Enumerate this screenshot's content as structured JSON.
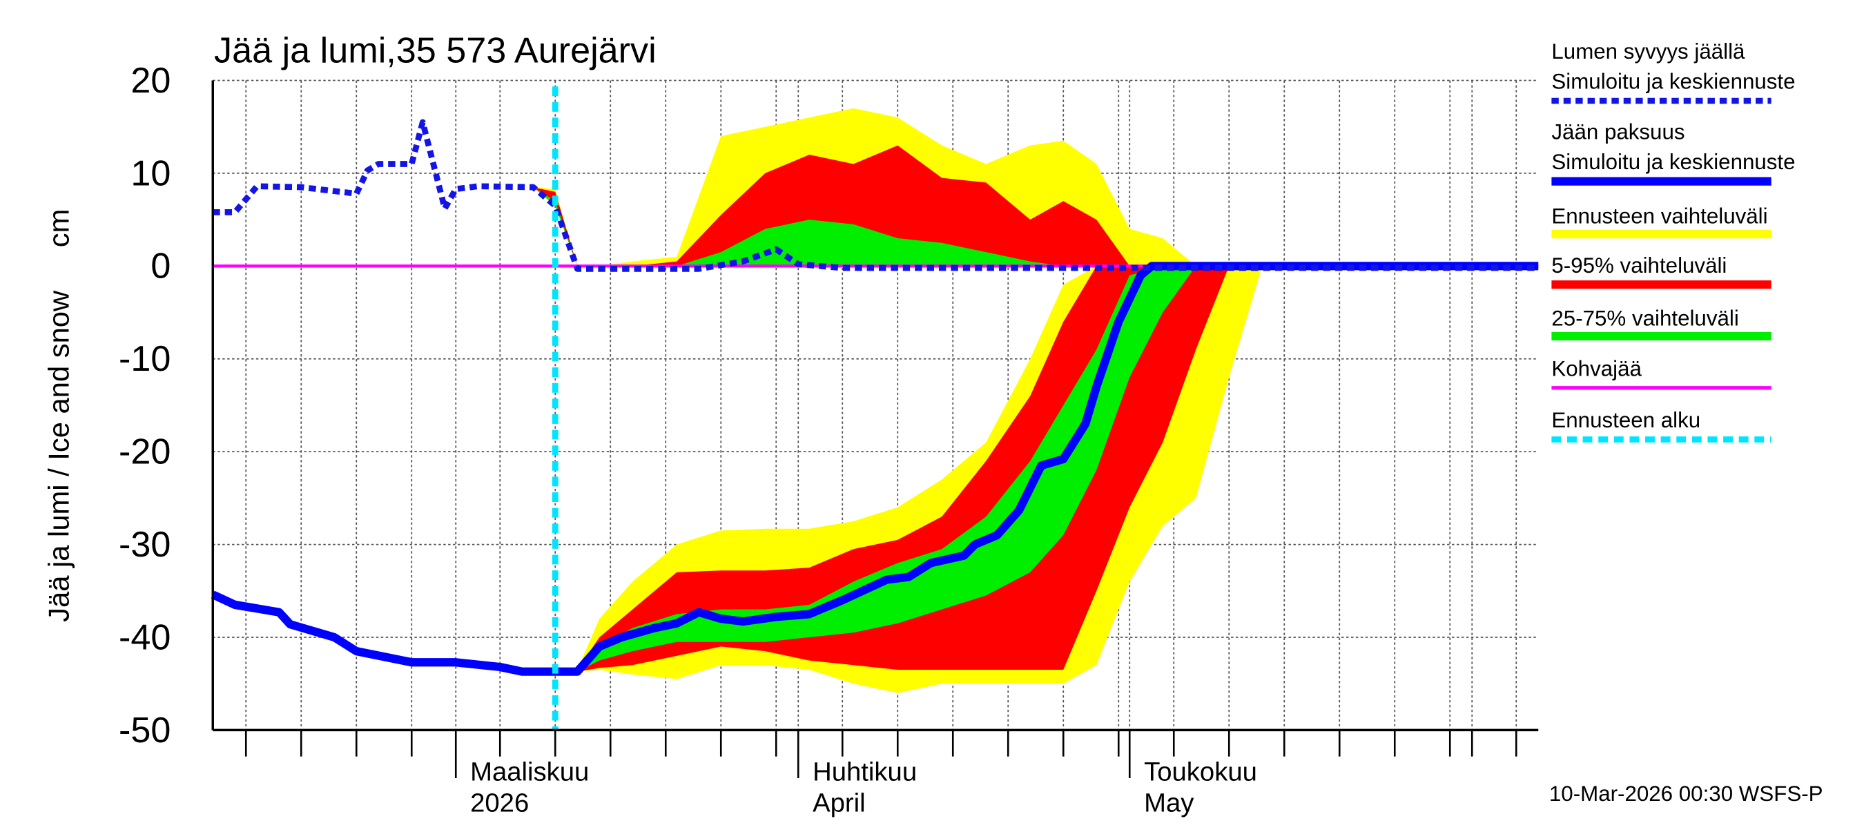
{
  "chart_data": {
    "type": "line",
    "title": "Jää ja lumi,35 573 Aurejärvi",
    "ylabel": "Jää ja lumi / Ice and snow",
    "yunit": "cm",
    "footer": "10-Mar-2026 00:30 WSFS-P",
    "xlim": [
      38,
      158
    ],
    "ylim": [
      -50,
      20
    ],
    "yticks": [
      20,
      10,
      0,
      -10,
      -20,
      -30,
      -40,
      -50
    ],
    "xticks": [
      {
        "value": 60,
        "label": "Maaliskuu\n2026"
      },
      {
        "value": 91,
        "label": "Huhtikuu\nApril"
      },
      {
        "value": 121,
        "label": "Toukokuu\nMay"
      }
    ],
    "xgrid": [
      41,
      46,
      51,
      56,
      64,
      69,
      74,
      79,
      84,
      89,
      95,
      100,
      105,
      110,
      115,
      120,
      125,
      130,
      135,
      140,
      145,
      150,
      152,
      156
    ],
    "grid": true,
    "series": [
      {
        "name": "Lumen syvyys jäällä",
        "detail": "Simuloitu ja keskiennuste",
        "color": "#1414e6",
        "style": "dotted",
        "x": [
          38,
          40,
          42,
          46,
          51,
          52,
          53,
          56,
          57,
          59,
          60,
          62,
          67,
          69,
          71,
          82,
          86,
          89,
          91,
          95,
          158
        ],
        "values": [
          5.8,
          5.8,
          8.6,
          8.5,
          7.8,
          10.3,
          11,
          11,
          15.5,
          6.2,
          8.3,
          8.6,
          8.5,
          6.5,
          -0.3,
          -0.3,
          0.5,
          1.8,
          0.2,
          -0.2,
          -0.2
        ]
      },
      {
        "name": "Jään paksuus",
        "detail": "Simuloitu ja keskiennuste",
        "color": "#0000ff",
        "style": "solid",
        "x": [
          38,
          40,
          44,
          45,
          47,
          49,
          51,
          56,
          60,
          64,
          66,
          71,
          73,
          75,
          78,
          80,
          82,
          84,
          86,
          89,
          92,
          95,
          99,
          101,
          103,
          106,
          107,
          109,
          111,
          113,
          115,
          117,
          118,
          120,
          122,
          123,
          158
        ],
        "values": [
          -35.4,
          -36.5,
          -37.3,
          -38.6,
          -39.3,
          -40,
          -41.5,
          -42.7,
          -42.7,
          -43.2,
          -43.7,
          -43.7,
          -41,
          -40,
          -39,
          -38.5,
          -37.3,
          -38,
          -38.3,
          -37.8,
          -37.5,
          -36,
          -33.8,
          -33.5,
          -32,
          -31.2,
          -30,
          -29,
          -26.3,
          -21.5,
          -20.8,
          -17,
          -13,
          -6,
          -1,
          0,
          0
        ]
      },
      {
        "name": "Kohvajää",
        "color": "#ff00ff",
        "style": "thin",
        "x": [
          38,
          158
        ],
        "values": [
          0,
          0
        ]
      }
    ],
    "bands": [
      {
        "name": "Ennusteen vaihteluväli",
        "color": "#ffff00",
        "areas": [
          {
            "x": [
              69,
              71,
              73,
              76,
              80,
              84,
              88,
              92,
              96,
              100,
              104,
              108,
              112,
              115,
              118,
              121,
              124,
              127,
              130,
              133
            ],
            "upper": [
              -43.7,
              -43.5,
              -38,
              -34,
              -30,
              -28.5,
              -28.3,
              -28.3,
              -27.5,
              -26,
              -23,
              -19,
              -10,
              -2,
              0,
              0,
              0,
              0,
              0,
              0
            ],
            "lower": [
              -43.7,
              -43.7,
              -43.5,
              -44,
              -44.5,
              -43,
              -43,
              -43.5,
              -45,
              -46,
              -45,
              -45,
              -45,
              -45,
              -43,
              -34,
              -28,
              -25,
              -12,
              0
            ]
          },
          {
            "x": [
              67,
              69,
              71,
              73,
              76,
              80,
              84,
              88,
              92,
              96,
              100,
              104,
              108,
              112,
              115,
              118,
              121,
              124,
              127
            ],
            "upper": [
              8.5,
              8.3,
              0,
              0,
              0.5,
              1,
              14,
              15,
              16,
              17,
              16,
              13,
              11,
              13,
              13.5,
              11,
              4,
              3,
              0
            ],
            "lower": [
              8.5,
              6.5,
              0,
              0,
              0,
              0,
              0,
              0,
              0,
              0,
              0,
              0,
              0,
              0,
              0,
              0,
              0,
              0,
              0
            ]
          }
        ]
      },
      {
        "name": "5-95% vaihteluväli",
        "color": "#ff0000",
        "areas": [
          {
            "x": [
              69,
              71,
              73,
              76,
              80,
              84,
              88,
              92,
              96,
              100,
              104,
              108,
              112,
              115,
              118,
              121,
              124,
              127,
              130,
              133
            ],
            "upper": [
              -43.7,
              -43.5,
              -40,
              -37,
              -33,
              -32.8,
              -32.8,
              -32.5,
              -30.5,
              -29.5,
              -27,
              -21,
              -14,
              -6,
              0,
              0,
              0,
              0,
              0,
              0
            ],
            "lower": [
              -43.7,
              -43.7,
              -43.3,
              -43,
              -42,
              -41,
              -41.5,
              -42.5,
              -43,
              -43.5,
              -43.5,
              -43.5,
              -43.5,
              -43.5,
              -35,
              -26,
              -19,
              -9,
              0,
              0
            ]
          },
          {
            "x": [
              67,
              69,
              71,
              73,
              76,
              80,
              84,
              88,
              92,
              96,
              100,
              104,
              108,
              112,
              115,
              118,
              121,
              124,
              127
            ],
            "upper": [
              8.5,
              8,
              0,
              0,
              0,
              0.5,
              5.5,
              10,
              12,
              11,
              13,
              9.5,
              9,
              5,
              7,
              5,
              0,
              0,
              0
            ],
            "lower": [
              8.5,
              6.5,
              0,
              0,
              0,
              0,
              0,
              0,
              0,
              0,
              0,
              0,
              0,
              0,
              0,
              0,
              0,
              0,
              0
            ]
          }
        ]
      },
      {
        "name": "25-75% vaihteluväli",
        "color": "#00ee00",
        "areas": [
          {
            "x": [
              69,
              71,
              73,
              76,
              80,
              84,
              88,
              92,
              96,
              100,
              104,
              108,
              112,
              115,
              118,
              121,
              124,
              127,
              130,
              133
            ],
            "upper": [
              -43.7,
              -43.5,
              -41,
              -39,
              -37.5,
              -37,
              -37,
              -36.5,
              -34,
              -32,
              -30.5,
              -27,
              -21,
              -15,
              -9,
              -1,
              0,
              0,
              0,
              0
            ],
            "lower": [
              -43.7,
              -43.7,
              -42.5,
              -41.5,
              -40.5,
              -40.5,
              -40.5,
              -40,
              -39.5,
              -38.5,
              -37,
              -35.5,
              -33,
              -29,
              -22,
              -12,
              -5,
              0,
              0,
              0
            ]
          },
          {
            "x": [
              67,
              69,
              71,
              73,
              76,
              80,
              84,
              88,
              92,
              96,
              100,
              104,
              108,
              112,
              115,
              118,
              121,
              124,
              127
            ],
            "upper": [
              8.5,
              7,
              0,
              0,
              0,
              0,
              1.5,
              4,
              5,
              4.5,
              3,
              2.5,
              1.5,
              0.5,
              0,
              0,
              0,
              0,
              0
            ],
            "lower": [
              8.5,
              6.5,
              0,
              0,
              0,
              0,
              0,
              0,
              0,
              0,
              0,
              0,
              0,
              0,
              0,
              0,
              0,
              0,
              0
            ]
          }
        ]
      }
    ],
    "forecast_start": {
      "name": "Ennusteen alku",
      "x": 69,
      "color": "#00e5ff"
    }
  }
}
